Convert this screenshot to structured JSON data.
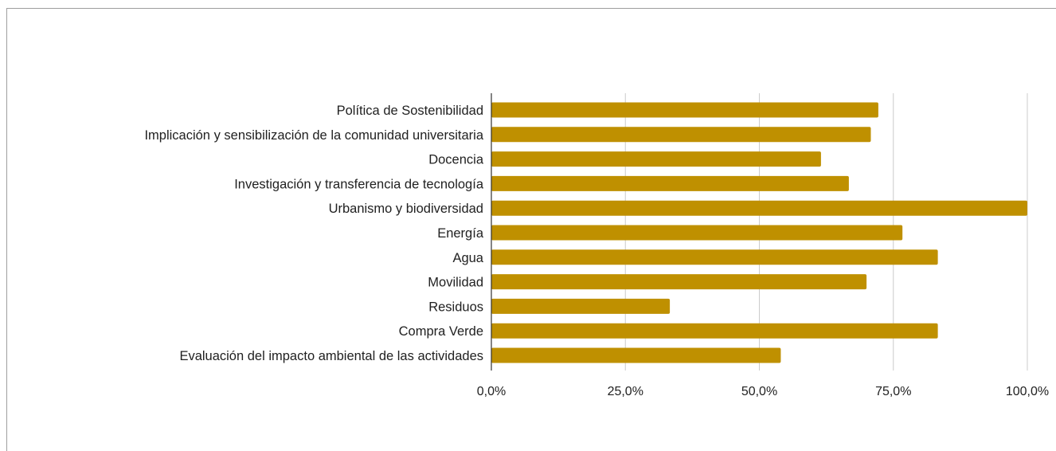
{
  "chart_data": {
    "type": "bar",
    "orientation": "horizontal",
    "title": "",
    "xlabel": "",
    "ylabel": "",
    "categories": [
      "Política de Sostenibilidad",
      "Implicación y sensibilización de la comunidad universitaria",
      "Docencia",
      "Investigación y transferencia de tecnología",
      "Urbanismo y biodiversidad",
      "Energía",
      "Agua",
      "Movilidad",
      "Residuos",
      "Compra Verde",
      "Evaluación del impacto ambiental de las actividades"
    ],
    "values": [
      72.2,
      70.8,
      61.5,
      66.7,
      100.0,
      76.7,
      83.3,
      70.0,
      33.3,
      83.3,
      54.0
    ],
    "xlim": [
      0,
      100
    ],
    "ticks": [
      0,
      25,
      50,
      75,
      100
    ],
    "tick_labels": [
      "0,0%",
      "25,0%",
      "50,0%",
      "75,0%",
      "100,0%"
    ],
    "grid": true,
    "legend": "none",
    "bar_color": "#bf9000",
    "grid_color": "#cccccc",
    "axis_color": "#333333"
  }
}
